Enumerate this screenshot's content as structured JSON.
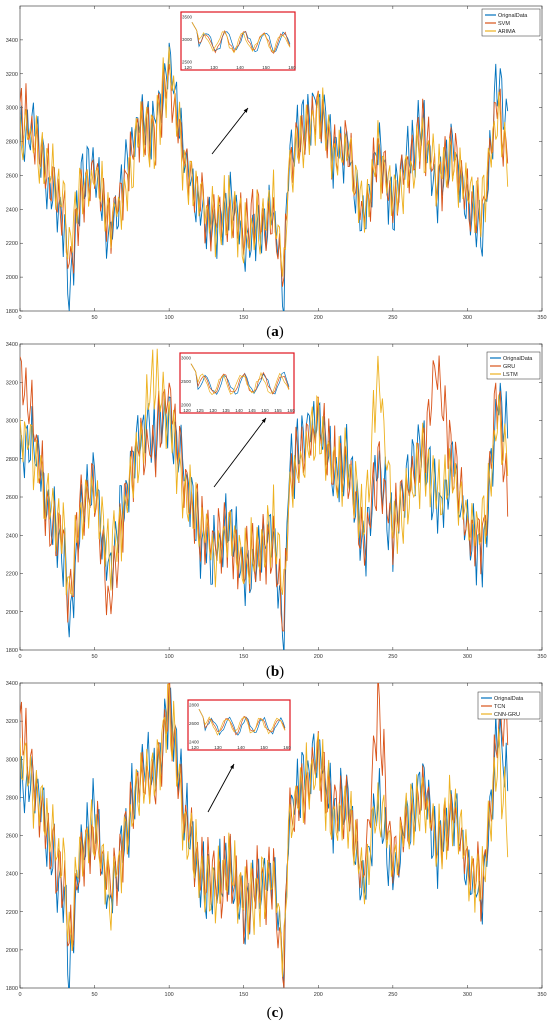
{
  "figure": {
    "panels": [
      {
        "caption_open": "(",
        "caption_letter": "a",
        "caption_close": ")",
        "legend": [
          "OrignalData",
          "SVM",
          "ARIMA"
        ],
        "inset_xticks": [
          "120",
          "130",
          "140",
          "150",
          "160"
        ],
        "inset_yticks": [
          "3500",
          "3000",
          "2500"
        ]
      },
      {
        "caption_open": "(",
        "caption_letter": "b",
        "caption_close": ")",
        "legend": [
          "OrignalData",
          "GRU",
          "LSTM"
        ],
        "inset_xticks": [
          "120",
          "125",
          "130",
          "135",
          "140",
          "145",
          "150",
          "155",
          "160"
        ],
        "inset_yticks": [
          "3000",
          "2500",
          "2000"
        ]
      },
      {
        "caption_open": "(",
        "caption_letter": "c",
        "caption_close": ")",
        "legend": [
          "OrignalData",
          "TCN",
          "CNN-GRU"
        ],
        "inset_xticks": [
          "120",
          "130",
          "140",
          "150",
          "160"
        ],
        "inset_yticks": [
          "2800",
          "2600",
          "2400"
        ]
      }
    ]
  },
  "chart_data": [
    {
      "type": "line",
      "xlim": [
        0,
        350
      ],
      "ylim": [
        1800,
        3600
      ],
      "xticks": [
        0,
        50,
        100,
        150,
        200,
        250,
        300,
        350
      ],
      "yticks": [
        1800,
        2000,
        2200,
        2400,
        2600,
        2800,
        3000,
        3200,
        3400
      ],
      "legend_position": "top-right",
      "colors": [
        "#0072bd",
        "#d95319",
        "#edb120"
      ],
      "x": [
        0,
        10,
        20,
        30,
        33,
        40,
        50,
        60,
        70,
        80,
        90,
        100,
        110,
        120,
        130,
        140,
        150,
        160,
        170,
        177,
        180,
        190,
        200,
        210,
        220,
        230,
        240,
        250,
        260,
        270,
        280,
        290,
        300,
        310,
        320,
        327
      ],
      "series": [
        {
          "name": "OrignalData",
          "values": [
            2850,
            2900,
            2500,
            2300,
            1880,
            2500,
            2700,
            2200,
            2600,
            2950,
            2900,
            3300,
            2750,
            2400,
            2300,
            2450,
            2200,
            2300,
            2400,
            1890,
            2700,
            2900,
            3050,
            2700,
            2800,
            2300,
            2800,
            2400,
            2700,
            2900,
            2500,
            2800,
            2400,
            2300,
            3150,
            2900
          ]
        },
        {
          "name": "SVM",
          "values": [
            3000,
            2850,
            2550,
            2350,
            2000,
            2450,
            2650,
            2300,
            2550,
            2900,
            2850,
            3200,
            2700,
            2450,
            2350,
            2400,
            2300,
            2350,
            2350,
            2050,
            2650,
            2850,
            3000,
            2750,
            2750,
            2350,
            2750,
            2450,
            2650,
            2850,
            2550,
            2750,
            2450,
            2350,
            3050,
            2700
          ]
        },
        {
          "name": "ARIMA",
          "values": [
            2900,
            2800,
            2600,
            2400,
            2100,
            2500,
            2600,
            2350,
            2500,
            2850,
            2800,
            3250,
            2650,
            2500,
            2300,
            2450,
            2250,
            2300,
            2450,
            2000,
            2600,
            2800,
            3000,
            2700,
            2800,
            2400,
            2700,
            2500,
            2600,
            2800,
            2600,
            2700,
            2500,
            2400,
            3000,
            2600
          ]
        }
      ]
    },
    {
      "type": "line",
      "xlim": [
        0,
        350
      ],
      "ylim": [
        1800,
        3400
      ],
      "xticks": [
        0,
        50,
        100,
        150,
        200,
        250,
        300,
        350
      ],
      "yticks": [
        1800,
        2000,
        2200,
        2400,
        2600,
        2800,
        3000,
        3200,
        3400
      ],
      "legend_position": "top-right",
      "colors": [
        "#0072bd",
        "#d95319",
        "#edb120"
      ],
      "x": [
        0,
        10,
        20,
        30,
        33,
        40,
        50,
        60,
        70,
        80,
        90,
        100,
        110,
        120,
        130,
        140,
        150,
        160,
        170,
        177,
        180,
        190,
        200,
        210,
        220,
        230,
        240,
        250,
        260,
        270,
        280,
        290,
        300,
        310,
        320,
        327
      ],
      "series": [
        {
          "name": "OrignalData",
          "values": [
            2850,
            2900,
            2500,
            2300,
            1880,
            2500,
            2700,
            2200,
            2600,
            2950,
            2900,
            3050,
            2750,
            2400,
            2300,
            2450,
            2200,
            2300,
            2400,
            1890,
            2700,
            2900,
            3050,
            2700,
            2800,
            2300,
            2800,
            2400,
            2700,
            2900,
            2500,
            2800,
            2400,
            2300,
            3100,
            2900
          ]
        },
        {
          "name": "GRU",
          "values": [
            3300,
            2950,
            2450,
            2350,
            2000,
            2550,
            2650,
            1950,
            2550,
            2900,
            2850,
            3150,
            2700,
            2450,
            2350,
            2400,
            2250,
            2350,
            2350,
            1950,
            2650,
            2850,
            3000,
            2750,
            2750,
            2350,
            2750,
            2450,
            2650,
            2850,
            3300,
            2750,
            2450,
            2350,
            3150,
            2600
          ]
        },
        {
          "name": "LSTM",
          "values": [
            2950,
            2850,
            2550,
            2400,
            2100,
            2500,
            2600,
            2300,
            2500,
            2850,
            3250,
            3000,
            2650,
            2500,
            2300,
            2450,
            2250,
            2300,
            2450,
            2050,
            2600,
            2800,
            3000,
            2700,
            2800,
            2400,
            3250,
            2500,
            2600,
            2800,
            2600,
            2700,
            2500,
            2400,
            3000,
            2850
          ]
        }
      ]
    },
    {
      "type": "line",
      "xlim": [
        0,
        350
      ],
      "ylim": [
        1800,
        3400
      ],
      "xticks": [
        0,
        50,
        100,
        150,
        200,
        250,
        300,
        350
      ],
      "yticks": [
        1800,
        2000,
        2200,
        2400,
        2600,
        2800,
        3000,
        3200,
        3400
      ],
      "legend_position": "top-right",
      "colors": [
        "#0072bd",
        "#d95319",
        "#edb120"
      ],
      "x": [
        0,
        10,
        20,
        30,
        33,
        40,
        50,
        60,
        70,
        80,
        90,
        100,
        110,
        120,
        130,
        140,
        150,
        160,
        170,
        177,
        180,
        190,
        200,
        210,
        220,
        230,
        240,
        250,
        260,
        270,
        280,
        290,
        300,
        310,
        320,
        327
      ],
      "series": [
        {
          "name": "OrignalData",
          "values": [
            2850,
            2900,
            2500,
            2300,
            1880,
            2500,
            2700,
            2200,
            2600,
            2950,
            2900,
            3300,
            2750,
            2400,
            2300,
            2450,
            2200,
            2300,
            2400,
            1890,
            2700,
            2900,
            3050,
            2700,
            2800,
            2300,
            2800,
            2400,
            2700,
            2900,
            2500,
            2800,
            2400,
            2300,
            3150,
            2900
          ]
        },
        {
          "name": "TCN",
          "values": [
            3200,
            2850,
            2550,
            2350,
            2000,
            2450,
            2650,
            2300,
            2550,
            2900,
            2850,
            3250,
            2700,
            2450,
            2350,
            2400,
            2250,
            2350,
            2350,
            1850,
            2650,
            2850,
            3000,
            2750,
            2750,
            2350,
            3300,
            2450,
            2650,
            2850,
            2550,
            2750,
            2450,
            2350,
            3100,
            3250
          ]
        },
        {
          "name": "CNN-GRU",
          "values": [
            3050,
            2800,
            2600,
            2400,
            2050,
            2500,
            2600,
            2300,
            2550,
            2850,
            2850,
            3300,
            2650,
            2450,
            2300,
            2450,
            2250,
            2300,
            2400,
            1950,
            2650,
            2850,
            3000,
            2700,
            2750,
            2350,
            2750,
            2450,
            2650,
            2850,
            2550,
            2750,
            2450,
            2350,
            3050,
            2700
          ]
        }
      ]
    }
  ]
}
